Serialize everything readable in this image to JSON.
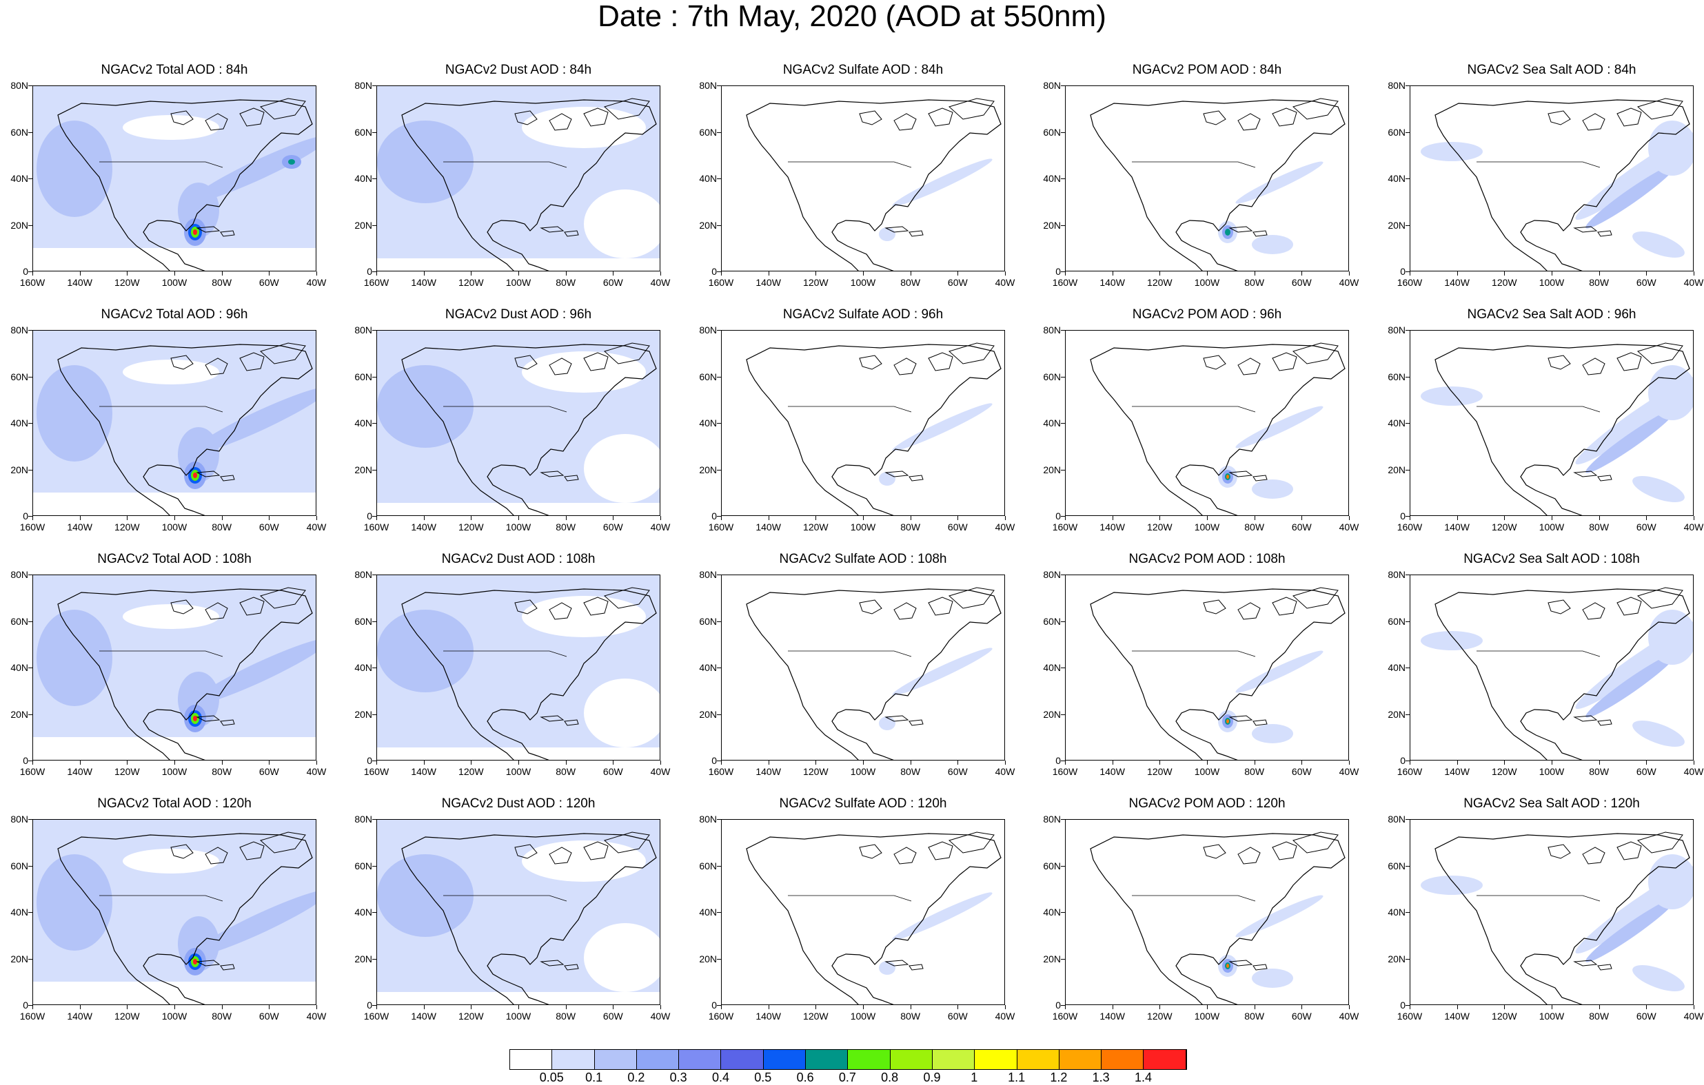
{
  "title": "Date : 7th May, 2020 (AOD at 550nm)",
  "lat_labels": [
    "80N",
    "60N",
    "40N",
    "20N",
    "0"
  ],
  "lon_labels": [
    "160W",
    "140W",
    "120W",
    "100W",
    "80W",
    "60W",
    "40W"
  ],
  "rows": [
    {
      "panels": [
        {
          "title": "NGACv2 Total AOD : 84h",
          "species": "total"
        },
        {
          "title": "NGACv2 Dust AOD : 84h",
          "species": "dust"
        },
        {
          "title": "NGACv2 Sulfate AOD : 84h",
          "species": "sulfate"
        },
        {
          "title": "NGACv2 POM AOD : 84h",
          "species": "pom"
        },
        {
          "title": "NGACv2 Sea Salt AOD : 84h",
          "species": "seasalt"
        }
      ]
    },
    {
      "panels": [
        {
          "title": "NGACv2 Total AOD : 96h",
          "species": "total"
        },
        {
          "title": "NGACv2 Dust AOD : 96h",
          "species": "dust"
        },
        {
          "title": "NGACv2 Sulfate AOD : 96h",
          "species": "sulfate"
        },
        {
          "title": "NGACv2 POM AOD : 96h",
          "species": "pom"
        },
        {
          "title": "NGACv2 Sea Salt AOD : 96h",
          "species": "seasalt"
        }
      ]
    },
    {
      "panels": [
        {
          "title": "NGACv2 Total AOD : 108h",
          "species": "total"
        },
        {
          "title": "NGACv2 Dust AOD : 108h",
          "species": "dust"
        },
        {
          "title": "NGACv2 Sulfate AOD : 108h",
          "species": "sulfate"
        },
        {
          "title": "NGACv2 POM AOD : 108h",
          "species": "pom"
        },
        {
          "title": "NGACv2 Sea Salt AOD : 108h",
          "species": "seasalt"
        }
      ]
    },
    {
      "panels": [
        {
          "title": "NGACv2 Total AOD : 120h",
          "species": "total"
        },
        {
          "title": "NGACv2 Dust AOD : 120h",
          "species": "dust"
        },
        {
          "title": "NGACv2 Sulfate AOD : 120h",
          "species": "sulfate"
        },
        {
          "title": "NGACv2 POM AOD : 120h",
          "species": "pom"
        },
        {
          "title": "NGACv2 Sea Salt  AOD : 120h",
          "species": "seasalt"
        }
      ]
    }
  ],
  "colorbar": {
    "colors": [
      "#ffffff",
      "#d5dffc",
      "#b4c4f8",
      "#8fa6f6",
      "#7d8cf3",
      "#5a64e8",
      "#0a5cf5",
      "#009688",
      "#5ef00a",
      "#9cf20a",
      "#c8f53c",
      "#ffff00",
      "#ffd200",
      "#ffa500",
      "#ff7800",
      "#ff2020"
    ],
    "labels": [
      "0.05",
      "0.1",
      "0.2",
      "0.3",
      "0.4",
      "0.5",
      "0.6",
      "0.7",
      "0.8",
      "0.9",
      "1",
      "1.1",
      "1.2",
      "1.3",
      "1.4"
    ]
  },
  "colors": {
    "light_blue": "#d5dffc",
    "mid_blue": "#b4c4f8",
    "blue": "#8fa6f6",
    "coast": "#000000"
  }
}
